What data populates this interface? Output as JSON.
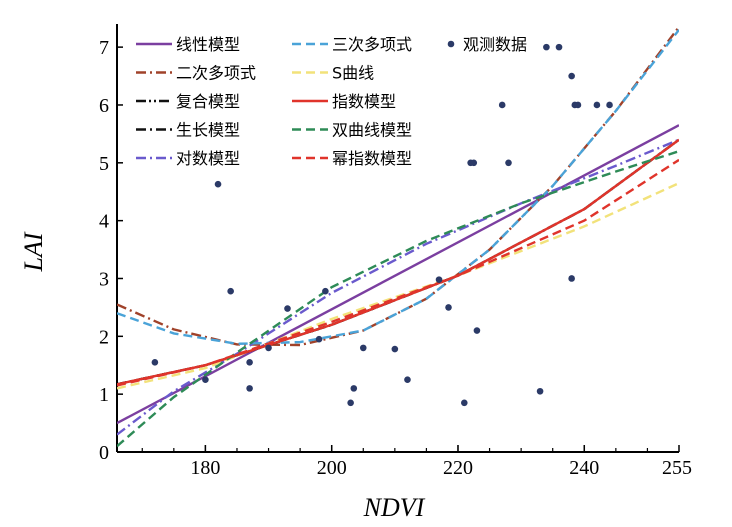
{
  "chart_data": {
    "type": "scatter",
    "xlabel": "NDVI",
    "ylabel": "LAI",
    "xlim": [
      166,
      255
    ],
    "ylim": [
      0,
      7.4
    ],
    "x_ticks": [
      180,
      200,
      220,
      240,
      255
    ],
    "y_ticks": [
      0,
      1,
      2,
      3,
      4,
      5,
      6,
      7
    ],
    "legend_position": "top",
    "points": {
      "name": "观测数据",
      "color": "#2b3a67",
      "x": [
        172,
        180,
        182,
        184,
        187,
        187,
        190,
        193,
        198,
        199,
        203,
        203.5,
        205,
        210,
        212,
        217,
        218.5,
        221,
        222,
        222.5,
        223,
        227,
        228,
        233,
        234,
        236,
        238,
        238,
        238.5,
        239,
        242,
        244
      ],
      "y": [
        1.55,
        1.25,
        4.63,
        2.78,
        1.55,
        1.1,
        1.8,
        2.48,
        1.95,
        2.78,
        0.85,
        1.1,
        1.8,
        1.78,
        1.25,
        2.98,
        2.5,
        0.85,
        5.0,
        5.0,
        2.1,
        6.0,
        5.0,
        1.05,
        7.0,
        7.0,
        6.5,
        3.0,
        6.0,
        6.0,
        6.0,
        6.0
      ]
    },
    "series": [
      {
        "name": "线性模型",
        "color": "#7b3fa0",
        "dash": "solid",
        "x": [
          166,
          255
        ],
        "y": [
          0.5,
          5.65
        ]
      },
      {
        "name": "二次多项式",
        "color": "#a0422a",
        "dash": "dashdot",
        "x": [
          166,
          175,
          185,
          195,
          205,
          215,
          225,
          235,
          245,
          255
        ],
        "y": [
          2.55,
          2.12,
          1.86,
          1.85,
          2.1,
          2.65,
          3.5,
          4.6,
          5.9,
          7.35
        ]
      },
      {
        "name": "复合模型",
        "color": "#111111",
        "dash": "dashdotdot",
        "x": [
          166,
          180,
          200,
          220,
          240,
          255
        ],
        "y": [
          1.17,
          1.5,
          2.2,
          3.05,
          4.2,
          5.4
        ]
      },
      {
        "name": "生长模型",
        "color": "#111111",
        "dash": "dashdot",
        "x": [
          166,
          180,
          200,
          220,
          240,
          255
        ],
        "y": [
          1.17,
          1.5,
          2.2,
          3.05,
          4.2,
          5.4
        ]
      },
      {
        "name": "对数模型",
        "color": "#6a5acd",
        "dash": "dashdot",
        "x": [
          166,
          175,
          185,
          200,
          215,
          230,
          245,
          255
        ],
        "y": [
          0.3,
          1.05,
          1.7,
          2.75,
          3.6,
          4.3,
          4.95,
          5.4
        ]
      },
      {
        "name": "三次多项式",
        "color": "#4aa3d8",
        "dash": "dashed",
        "x": [
          166,
          175,
          185,
          195,
          205,
          215,
          225,
          235,
          245,
          255
        ],
        "y": [
          2.4,
          2.05,
          1.87,
          1.9,
          2.1,
          2.65,
          3.5,
          4.6,
          5.9,
          7.3
        ]
      },
      {
        "name": "S曲线",
        "color": "#f2e27a",
        "dash": "dashed",
        "x": [
          166,
          180,
          200,
          220,
          240,
          255
        ],
        "y": [
          1.1,
          1.45,
          2.3,
          3.05,
          3.9,
          4.65
        ]
      },
      {
        "name": "指数模型",
        "color": "#e0342b",
        "dash": "solid",
        "x": [
          166,
          180,
          200,
          220,
          240,
          255
        ],
        "y": [
          1.17,
          1.5,
          2.2,
          3.05,
          4.2,
          5.4
        ]
      },
      {
        "name": "双曲线模型",
        "color": "#2e8b57",
        "dash": "dashed",
        "x": [
          166,
          175,
          185,
          200,
          215,
          230,
          245,
          255
        ],
        "y": [
          0.1,
          0.95,
          1.72,
          2.85,
          3.65,
          4.3,
          4.85,
          5.2
        ]
      },
      {
        "name": "幂指数模型",
        "color": "#e0342b",
        "dash": "dashed",
        "x": [
          166,
          180,
          200,
          220,
          240,
          255
        ],
        "y": [
          1.15,
          1.5,
          2.25,
          3.05,
          4.0,
          5.05
        ]
      }
    ],
    "legend_rows": [
      [
        "线性模型",
        "三次多项式",
        "观测数据"
      ],
      [
        "二次多项式",
        "S曲线"
      ],
      [
        "复合模型",
        "指数模型"
      ],
      [
        "生长模型",
        "双曲线模型"
      ],
      [
        "对数模型",
        "幂指数模型"
      ]
    ]
  }
}
